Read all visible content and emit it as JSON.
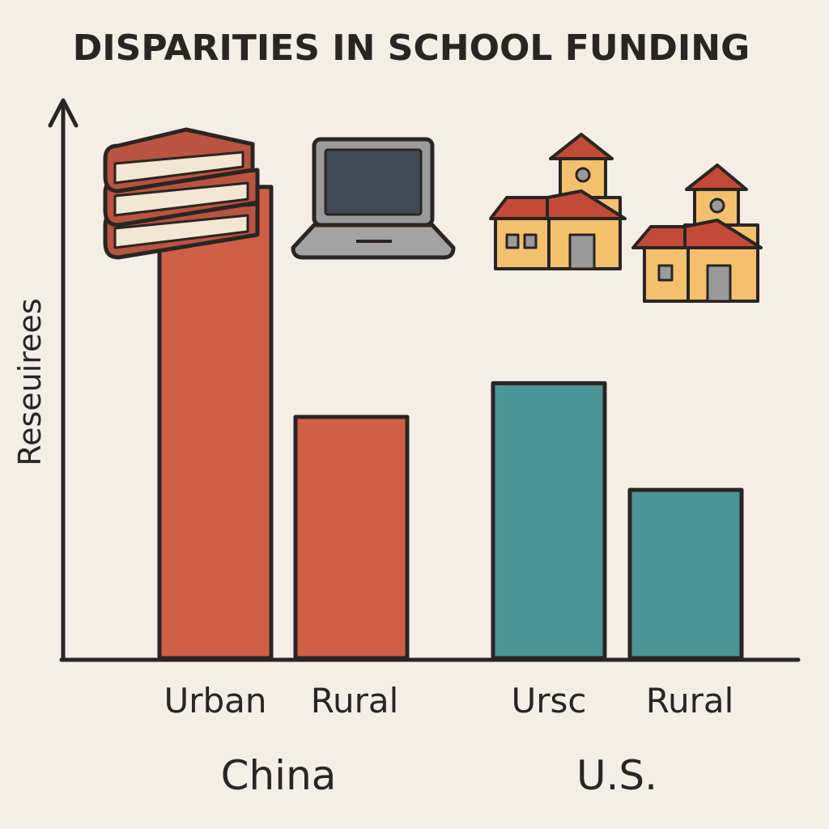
{
  "chart_data": {
    "type": "bar",
    "title": "DISPARITIES IN SCHOOL FUNDING",
    "ylabel": "Reseuirees",
    "xlabel": "",
    "ylim": [
      0,
      10
    ],
    "grid": false,
    "groups": [
      {
        "name": "China",
        "color": "#cf5f46",
        "bars": [
          {
            "category": "Urban",
            "value": 8.4
          },
          {
            "category": "Rural",
            "value": 4.3
          }
        ]
      },
      {
        "name": "U.S.",
        "color": "#4b9497",
        "bars": [
          {
            "category": "Ursc",
            "value": 4.9
          },
          {
            "category": "Rural",
            "value": 3.0
          }
        ]
      }
    ],
    "icons": [
      "books-icon",
      "laptop-icon",
      "school-building-icon",
      "small-school-building-icon"
    ]
  },
  "colors": {
    "background": "#f4eee6",
    "outline": "#2a2522",
    "china": "#cf5f46",
    "us": "#4b9497",
    "book": "#b8543f",
    "building": "#f3c06d",
    "roof": "#c24a37"
  }
}
